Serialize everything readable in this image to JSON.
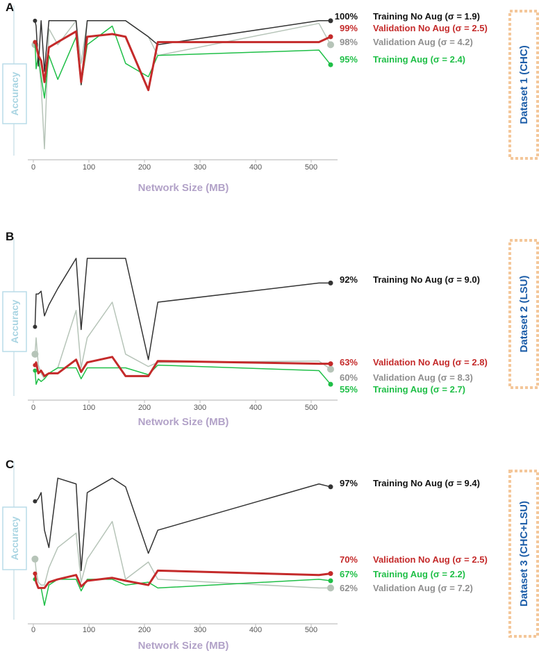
{
  "chart_data": [
    {
      "type": "line",
      "panel": "A",
      "dataset": "Dataset 1 (CHC)",
      "xlabel": "Network Size (MB)",
      "ylabel": "Accuracy",
      "xlim": [
        0,
        540
      ],
      "xticks": [
        "0",
        "100",
        "200",
        "300",
        "400",
        "500"
      ],
      "ylim": [
        0,
        1
      ],
      "series": [
        {
          "name": "Training No Aug (σ = 1.9)",
          "pct": "100%",
          "color": "#333333",
          "width": 1.5,
          "x": [
            3,
            5,
            9,
            14,
            20,
            28,
            44,
            77,
            86,
            97,
            142,
            166,
            207,
            224,
            514,
            535
          ],
          "y": [
            0.98,
            0.94,
            0.64,
            0.98,
            0.6,
            0.98,
            0.98,
            0.98,
            0.5,
            0.98,
            0.98,
            0.98,
            0.86,
            0.8,
            0.98,
            0.98
          ]
        },
        {
          "name": "Validation No Aug (σ = 2.5)",
          "pct": "99%",
          "color": "#c42a2a",
          "width": 3,
          "x": [
            3,
            5,
            9,
            14,
            20,
            28,
            44,
            77,
            86,
            97,
            142,
            166,
            207,
            224,
            514,
            535
          ],
          "y": [
            0.82,
            0.8,
            0.72,
            0.68,
            0.52,
            0.78,
            0.82,
            0.9,
            0.52,
            0.86,
            0.88,
            0.86,
            0.46,
            0.82,
            0.82,
            0.86
          ],
          "endpoint_y": 0.86
        },
        {
          "name": "Validation Aug (σ = 4.2)",
          "pct": "98%",
          "color": "#b6c4b8",
          "width": 1.5,
          "x": [
            3,
            5,
            9,
            14,
            20,
            28,
            44,
            77,
            86,
            97,
            142,
            166,
            207,
            224,
            514,
            535
          ],
          "y": [
            0.8,
            0.76,
            0.72,
            0.5,
            0.02,
            0.92,
            0.8,
            0.98,
            0.66,
            0.98,
            0.98,
            0.98,
            0.86,
            0.72,
            0.96,
            0.8
          ],
          "endpoint_y": 0.8
        },
        {
          "name": "Training Aug (σ = 2.4)",
          "pct": "95%",
          "color": "#1fbf47",
          "width": 1.5,
          "x": [
            3,
            5,
            9,
            14,
            20,
            28,
            44,
            77,
            86,
            97,
            142,
            166,
            207,
            224,
            514,
            535
          ],
          "y": [
            0.82,
            0.62,
            0.72,
            0.56,
            0.4,
            0.72,
            0.54,
            0.86,
            0.5,
            0.8,
            0.94,
            0.66,
            0.56,
            0.72,
            0.76,
            0.65
          ],
          "endpoint_y": 0.65
        }
      ]
    },
    {
      "type": "line",
      "panel": "B",
      "dataset": "Dataset 2 (LSU)",
      "xlabel": "Network Size (MB)",
      "ylabel": "Accuracy",
      "xlim": [
        0,
        540
      ],
      "xticks": [
        "0",
        "100",
        "200",
        "300",
        "400",
        "500"
      ],
      "ylim": [
        0,
        1
      ],
      "series": [
        {
          "name": "Training No Aug (σ = 9.0)",
          "pct": "92%",
          "color": "#333333",
          "width": 1.5,
          "x": [
            3,
            5,
            9,
            14,
            20,
            28,
            44,
            77,
            86,
            97,
            142,
            166,
            207,
            224,
            514,
            535
          ],
          "y": [
            0.48,
            0.72,
            0.72,
            0.74,
            0.56,
            0.64,
            0.76,
            0.98,
            0.46,
            0.98,
            0.98,
            0.98,
            0.24,
            0.66,
            0.8,
            0.8
          ],
          "endpoint_y": 0.8
        },
        {
          "name": "Validation No Aug (σ = 2.8)",
          "pct": "63%",
          "color": "#c42a2a",
          "width": 3,
          "x": [
            3,
            5,
            9,
            14,
            20,
            28,
            44,
            77,
            86,
            97,
            142,
            166,
            207,
            224,
            514,
            535
          ],
          "y": [
            0.2,
            0.22,
            0.14,
            0.16,
            0.12,
            0.14,
            0.14,
            0.24,
            0.15,
            0.22,
            0.26,
            0.12,
            0.12,
            0.23,
            0.21,
            0.21
          ],
          "endpoint_y": 0.21
        },
        {
          "name": "Validation Aug (σ = 8.3)",
          "pct": "60%",
          "color": "#b6c4b8",
          "width": 1.5,
          "x": [
            3,
            5,
            9,
            14,
            20,
            28,
            44,
            77,
            86,
            97,
            142,
            166,
            207,
            224,
            514,
            535
          ],
          "y": [
            0.28,
            0.4,
            0.2,
            0.14,
            0.1,
            0.14,
            0.18,
            0.6,
            0.18,
            0.4,
            0.66,
            0.28,
            0.19,
            0.22,
            0.23,
            0.17
          ],
          "endpoint_y": 0.17
        },
        {
          "name": "Training Aug (σ = 2.7)",
          "pct": "55%",
          "color": "#1fbf47",
          "width": 1.5,
          "x": [
            3,
            5,
            9,
            14,
            20,
            28,
            44,
            77,
            86,
            97,
            142,
            166,
            207,
            224,
            514,
            535
          ],
          "y": [
            0.16,
            0.06,
            0.1,
            0.08,
            0.1,
            0.14,
            0.18,
            0.18,
            0.1,
            0.18,
            0.18,
            0.18,
            0.13,
            0.2,
            0.16,
            0.06
          ],
          "endpoint_y": 0.06
        }
      ]
    },
    {
      "type": "line",
      "panel": "C",
      "dataset": "Dataset 3 (CHC+LSU)",
      "xlabel": "Network Size (MB)",
      "ylabel": "Accuracy",
      "xlim": [
        0,
        540
      ],
      "xticks": [
        "0",
        "100",
        "200",
        "300",
        "400",
        "500"
      ],
      "ylim": [
        0,
        1
      ],
      "series": [
        {
          "name": "Training No Aug (σ = 9.4)",
          "pct": "97%",
          "color": "#333333",
          "width": 1.5,
          "x": [
            3,
            5,
            9,
            14,
            20,
            28,
            44,
            77,
            86,
            97,
            142,
            166,
            207,
            224,
            514,
            535
          ],
          "y": [
            0.8,
            0.8,
            0.82,
            0.86,
            0.6,
            0.48,
            0.96,
            0.92,
            0.32,
            0.86,
            0.96,
            0.9,
            0.44,
            0.6,
            0.92,
            0.9
          ],
          "endpoint_y": 0.9
        },
        {
          "name": "Validation No Aug (σ = 2.5)",
          "pct": "70%",
          "color": "#c42a2a",
          "width": 3,
          "x": [
            3,
            5,
            9,
            14,
            20,
            28,
            44,
            77,
            86,
            97,
            142,
            166,
            207,
            224,
            514,
            535
          ],
          "y": [
            0.3,
            0.24,
            0.2,
            0.2,
            0.2,
            0.24,
            0.26,
            0.29,
            0.21,
            0.25,
            0.27,
            0.25,
            0.22,
            0.32,
            0.29,
            0.3
          ],
          "endpoint_y": 0.3
        },
        {
          "name": "Validation Aug (σ = 7.2)",
          "pct": "62%",
          "color": "#b6c4b8",
          "width": 1.5,
          "x": [
            3,
            5,
            9,
            14,
            20,
            28,
            44,
            77,
            86,
            97,
            142,
            166,
            207,
            224,
            514,
            535
          ],
          "y": [
            0.4,
            0.32,
            0.24,
            0.22,
            0.22,
            0.34,
            0.48,
            0.58,
            0.24,
            0.4,
            0.66,
            0.26,
            0.38,
            0.26,
            0.2,
            0.2
          ],
          "endpoint_y": 0.2
        },
        {
          "name": "Training Aug (σ = 2.2)",
          "pct": "67%",
          "color": "#1fbf47",
          "width": 1.5,
          "x": [
            3,
            5,
            9,
            14,
            20,
            28,
            44,
            77,
            86,
            97,
            142,
            166,
            207,
            224,
            514,
            535
          ],
          "y": [
            0.26,
            0.24,
            0.2,
            0.2,
            0.08,
            0.22,
            0.26,
            0.26,
            0.18,
            0.26,
            0.26,
            0.22,
            0.24,
            0.2,
            0.26,
            0.25
          ],
          "endpoint_y": 0.25
        }
      ]
    }
  ]
}
